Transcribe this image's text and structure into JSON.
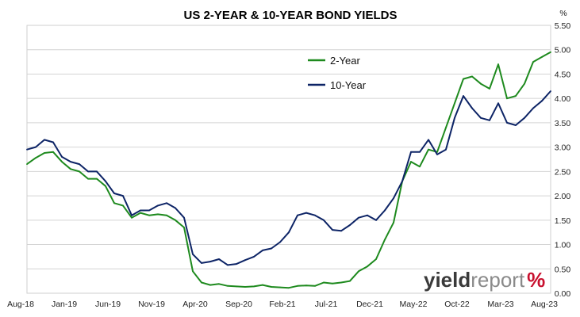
{
  "chart_data": {
    "type": "line",
    "title": "US 2-YEAR & 10-YEAR BOND YIELDS",
    "y_unit_label": "%",
    "xlabel": "",
    "ylabel": "",
    "ylim": [
      0,
      5.5
    ],
    "y_ticks": [
      "0.00",
      "0.50",
      "1.00",
      "1.50",
      "2.00",
      "2.50",
      "3.00",
      "3.50",
      "4.00",
      "4.50",
      "5.00",
      "5.50"
    ],
    "y_axis_side": "right",
    "grid": "horizontal",
    "x_ticks": [
      "Aug-18",
      "Jan-19",
      "Jun-19",
      "Nov-19",
      "Apr-20",
      "Sep-20",
      "Feb-21",
      "Jul-21",
      "Dec-21",
      "May-22",
      "Oct-22",
      "Mar-23",
      "Aug-23"
    ],
    "legend_position": "top-center",
    "x": [
      "2018-08",
      "2018-09",
      "2018-10",
      "2018-11",
      "2018-12",
      "2019-01",
      "2019-02",
      "2019-03",
      "2019-04",
      "2019-05",
      "2019-06",
      "2019-07",
      "2019-08",
      "2019-09",
      "2019-10",
      "2019-11",
      "2019-12",
      "2020-01",
      "2020-02",
      "2020-03",
      "2020-04",
      "2020-05",
      "2020-06",
      "2020-07",
      "2020-08",
      "2020-09",
      "2020-10",
      "2020-11",
      "2020-12",
      "2021-01",
      "2021-02",
      "2021-03",
      "2021-04",
      "2021-05",
      "2021-06",
      "2021-07",
      "2021-08",
      "2021-09",
      "2021-10",
      "2021-11",
      "2021-12",
      "2022-01",
      "2022-02",
      "2022-03",
      "2022-04",
      "2022-05",
      "2022-06",
      "2022-07",
      "2022-08",
      "2022-09",
      "2022-10",
      "2022-11",
      "2022-12",
      "2023-01",
      "2023-02",
      "2023-03",
      "2023-04",
      "2023-05",
      "2023-06",
      "2023-07",
      "2023-08"
    ],
    "series": [
      {
        "name": "2-Year",
        "color": "#1e8a1e",
        "values": [
          2.65,
          2.78,
          2.88,
          2.9,
          2.7,
          2.55,
          2.5,
          2.35,
          2.35,
          2.2,
          1.85,
          1.8,
          1.55,
          1.65,
          1.6,
          1.62,
          1.6,
          1.5,
          1.35,
          0.45,
          0.22,
          0.17,
          0.19,
          0.15,
          0.14,
          0.13,
          0.14,
          0.17,
          0.13,
          0.12,
          0.11,
          0.15,
          0.16,
          0.15,
          0.22,
          0.2,
          0.22,
          0.25,
          0.45,
          0.55,
          0.7,
          1.1,
          1.45,
          2.3,
          2.7,
          2.6,
          2.95,
          2.9,
          3.4,
          3.9,
          4.4,
          4.45,
          4.3,
          4.2,
          4.7,
          4.0,
          4.05,
          4.3,
          4.75,
          4.85,
          4.95
        ]
      },
      {
        "name": "10-Year",
        "color": "#0d2466",
        "values": [
          2.95,
          3.0,
          3.15,
          3.1,
          2.8,
          2.7,
          2.65,
          2.5,
          2.5,
          2.3,
          2.05,
          2.0,
          1.6,
          1.7,
          1.7,
          1.8,
          1.85,
          1.75,
          1.55,
          0.8,
          0.62,
          0.65,
          0.7,
          0.58,
          0.6,
          0.68,
          0.75,
          0.88,
          0.92,
          1.05,
          1.25,
          1.6,
          1.65,
          1.6,
          1.5,
          1.3,
          1.28,
          1.4,
          1.55,
          1.6,
          1.5,
          1.7,
          1.95,
          2.3,
          2.9,
          2.9,
          3.15,
          2.85,
          2.95,
          3.6,
          4.05,
          3.8,
          3.6,
          3.55,
          3.9,
          3.5,
          3.45,
          3.6,
          3.8,
          3.95,
          4.15
        ]
      }
    ]
  },
  "watermark": {
    "part1": "yield",
    "part2": "report",
    "part3": "%",
    "color1": "#3a3a3a",
    "color2": "#8a8a8a",
    "color3": "#c8102e"
  }
}
